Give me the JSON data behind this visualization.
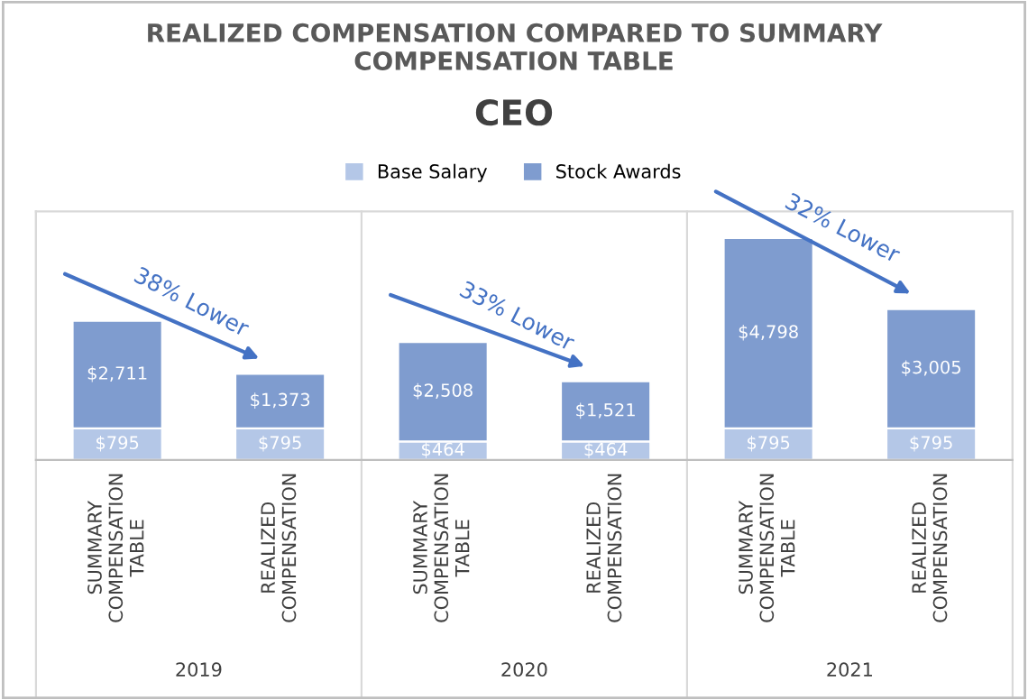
{
  "chart_data": {
    "type": "bar",
    "stacked": true,
    "title": "REALIZED COMPENSATION COMPARED TO SUMMARY\nCOMPENSATION TABLE",
    "subtitle": "CEO",
    "categories": [
      "SUMMARY\nCOMPENSATION\nTABLE",
      "REALIZED\nCOMPENSATION",
      "SUMMARY\nCOMPENSATION\nTABLE",
      "REALIZED\nCOMPENSATION",
      "SUMMARY\nCOMPENSATION\nTABLE",
      "REALIZED\nCOMPENSATION"
    ],
    "series": [
      {
        "name": "Base Salary",
        "color": "#b4c7e7",
        "values": [
          795,
          795,
          464,
          464,
          795,
          795
        ],
        "value_labels": [
          "$795",
          "$795",
          "$464",
          "$464",
          "$795",
          "$795"
        ]
      },
      {
        "name": "Stock Awards",
        "color": "#7f9ccf",
        "values": [
          2711,
          1373,
          2508,
          1521,
          4798,
          3005
        ],
        "value_labels": [
          "$2,711",
          "$1,373",
          "$2,508",
          "$1,521",
          "$4,798",
          "$3,005"
        ]
      }
    ],
    "annotations": [
      "38% Lower",
      "33% Lower",
      "32% Lower",
      "2019",
      "2020",
      "2021"
    ],
    "legend": "top"
  }
}
